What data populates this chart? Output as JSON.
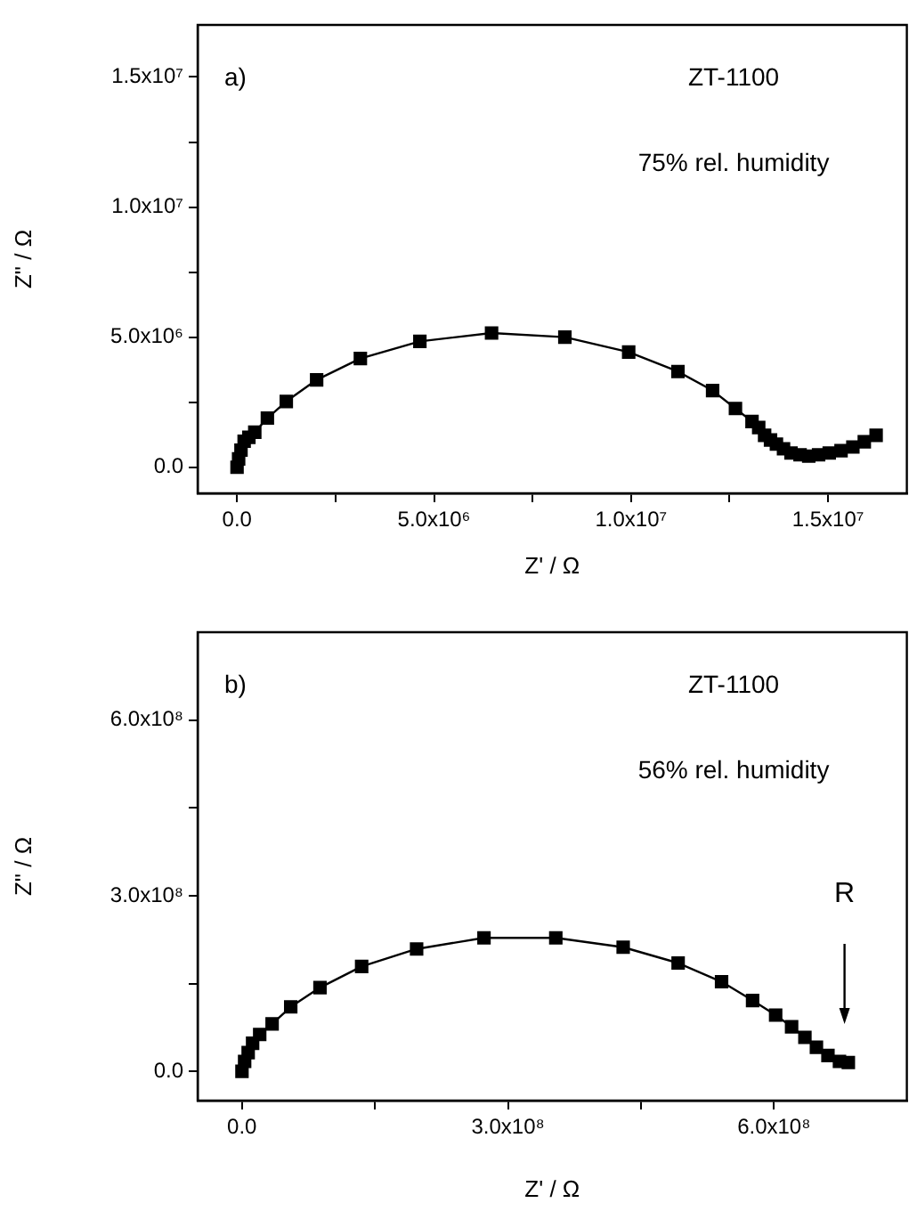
{
  "chart_data": [
    {
      "type": "line",
      "marker": "square",
      "color": "#000000",
      "xlabel": "Z' / Ω",
      "ylabel": "Z\" / Ω",
      "annotations": [
        "a)",
        "ZT-1100",
        "75% rel. humidity"
      ],
      "x": [
        0,
        40000,
        100000,
        180000,
        300000,
        450000,
        770000,
        1250000,
        2020000,
        3130000,
        4640000,
        6460000,
        8320000,
        9940000,
        11190000,
        12070000,
        12650000,
        13070000,
        13240000,
        13390000,
        13540000,
        13690000,
        13870000,
        14060000,
        14290000,
        14510000,
        14760000,
        15030000,
        15330000,
        15630000,
        15920000,
        16220000
      ],
      "values": [
        0,
        320000,
        660000,
        1000000,
        1150000,
        1350000,
        1890000,
        2530000,
        3360000,
        4180000,
        4840000,
        5160000,
        5000000,
        4430000,
        3680000,
        2950000,
        2260000,
        1760000,
        1530000,
        1230000,
        1050000,
        890000,
        710000,
        550000,
        480000,
        430000,
        480000,
        550000,
        640000,
        780000,
        980000,
        1230000
      ],
      "xlim": [
        -1000000,
        17000000
      ],
      "ylim": [
        -1000000,
        17000000
      ],
      "xticks": [
        {
          "value": 0,
          "label": "0.0"
        },
        {
          "value": 2500000,
          "label": null
        },
        {
          "value": 5000000,
          "label": "5.0x10⁶"
        },
        {
          "value": 7500000,
          "label": null
        },
        {
          "value": 10000000,
          "label": "1.0x10⁷"
        },
        {
          "value": 12500000,
          "label": null
        },
        {
          "value": 15000000,
          "label": "1.5x10⁷"
        }
      ],
      "yticks": [
        {
          "value": 0,
          "label": "0.0"
        },
        {
          "value": 2500000,
          "label": null
        },
        {
          "value": 5000000,
          "label": "5.0x10⁶"
        },
        {
          "value": 7500000,
          "label": null
        },
        {
          "value": 10000000,
          "label": "1.0x10⁷"
        },
        {
          "value": 12500000,
          "label": null
        },
        {
          "value": 15000000,
          "label": "1.5x10⁷"
        }
      ]
    },
    {
      "type": "line",
      "marker": "square",
      "color": "#000000",
      "xlabel": "Z' / Ω",
      "ylabel": "Z\" / Ω",
      "annotations": [
        "b)",
        "ZT-1100",
        "56% rel. humidity",
        "R"
      ],
      "x": [
        0,
        3000000,
        7000000,
        12000000,
        20000000,
        34000000,
        55000000,
        88000000,
        135000000,
        197000000,
        273000000,
        354000000,
        430000000,
        492000000,
        541000000,
        576000000,
        602000000,
        620000000,
        635000000,
        648000000,
        661000000,
        674000000,
        684000000
      ],
      "values": [
        0,
        17000000,
        32000000,
        48000000,
        63000000,
        81000000,
        110000000,
        143000000,
        179000000,
        209000000,
        228000000,
        228000000,
        212000000,
        185000000,
        153000000,
        121000000,
        96000000,
        76000000,
        58000000,
        41000000,
        27000000,
        17000000,
        15000000
      ],
      "xlim": [
        -50000000,
        750000000
      ],
      "ylim": [
        -50000000,
        750000000
      ],
      "xticks": [
        {
          "value": 0,
          "label": "0.0"
        },
        {
          "value": 150000000,
          "label": null
        },
        {
          "value": 300000000,
          "label": "3.0x10⁸"
        },
        {
          "value": 450000000,
          "label": null
        },
        {
          "value": 600000000,
          "label": "6.0x10⁸"
        }
      ],
      "yticks": [
        {
          "value": 0,
          "label": "0.0"
        },
        {
          "value": 150000000,
          "label": null
        },
        {
          "value": 300000000,
          "label": "3.0x10⁸"
        },
        {
          "value": 450000000,
          "label": null
        },
        {
          "value": 600000000,
          "label": "6.0x10⁸"
        }
      ]
    }
  ]
}
